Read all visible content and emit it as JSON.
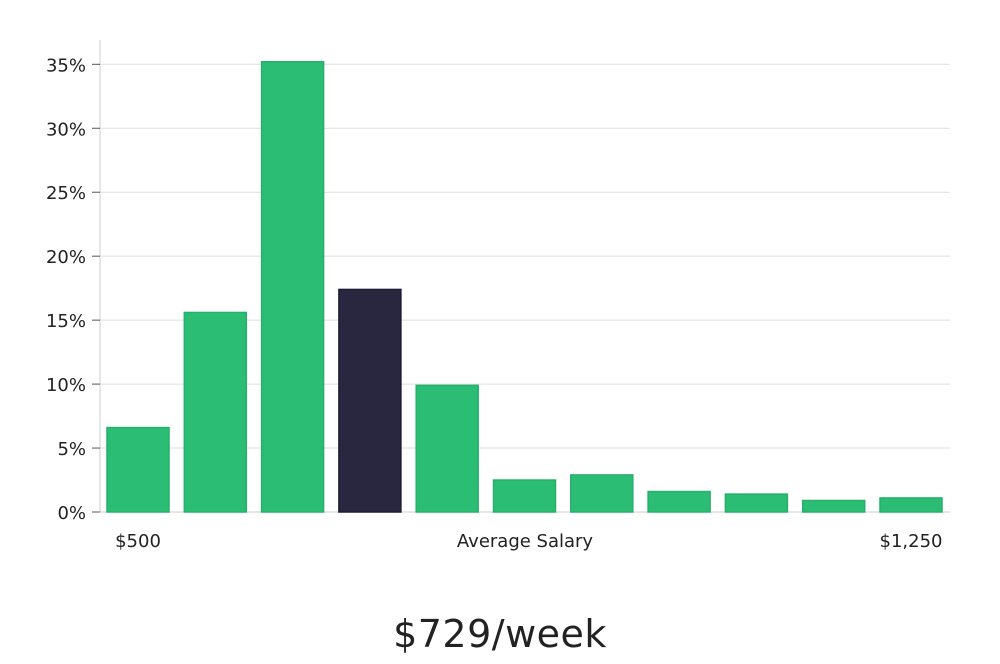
{
  "chart_data": {
    "type": "bar",
    "categories": [
      "$500",
      "",
      "",
      "",
      "",
      "",
      "",
      "",
      "",
      "",
      "$1,250"
    ],
    "values": [
      6.6,
      15.6,
      35.2,
      17.4,
      9.9,
      2.5,
      2.9,
      1.6,
      1.4,
      0.9,
      1.1
    ],
    "highlight_index": 3,
    "y_unit": "%",
    "ylim": [
      0,
      36.9
    ],
    "yticks": [
      0,
      5,
      10,
      15,
      20,
      25,
      30,
      35
    ],
    "ytick_labels": [
      "0%",
      "5%",
      "10%",
      "15%",
      "20%",
      "25%",
      "30%",
      "35%"
    ],
    "xlabel": "Average Salary",
    "x_start_label": "$500",
    "x_end_label": "$1,250",
    "grid": true,
    "legend": "none",
    "colors": {
      "bar": "#2bbd74",
      "highlight": "#29263f",
      "grid": "#dddddd",
      "axis": "#cccccc",
      "text": "#222222"
    }
  },
  "summary": "$729/week"
}
